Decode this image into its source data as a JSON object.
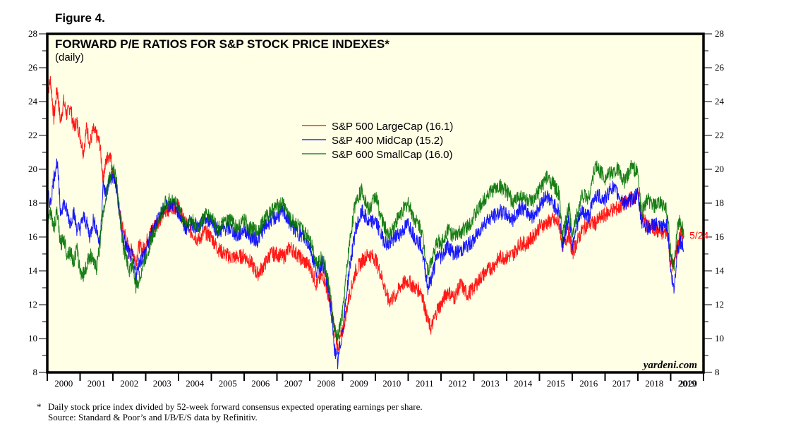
{
  "figure_label": "Figure 4.",
  "chart_data": {
    "type": "line",
    "title": "FORWARD P/E RATIOS FOR S&P STOCK PRICE INDEXES*",
    "subtitle": "(daily)",
    "xlabel": "",
    "ylabel": "",
    "xlim": [
      2000,
      2020
    ],
    "ylim": [
      8,
      28
    ],
    "y_ticks": [
      8,
      10,
      12,
      14,
      16,
      18,
      20,
      22,
      24,
      26,
      28
    ],
    "x_tick_labels": [
      "2000",
      "2001",
      "2002",
      "2003",
      "2004",
      "2005",
      "2006",
      "2007",
      "2008",
      "2009",
      "2010",
      "2011",
      "2012",
      "2013",
      "2014",
      "2015",
      "2016",
      "2017",
      "2018",
      "2019",
      "2020"
    ],
    "grid": false,
    "legend_position": "top-center",
    "annotation": {
      "text": "5/24",
      "x": 2019.4,
      "y": 16.1,
      "color": "#ff0000"
    },
    "watermark": "yardeni.com",
    "series": [
      {
        "name": "S&P 500 LargeCap (16.1)",
        "color": "#ff0000",
        "x": [
          2000.0,
          2000.1,
          2000.2,
          2000.3,
          2000.4,
          2000.5,
          2000.6,
          2000.7,
          2000.8,
          2000.9,
          2001.0,
          2001.1,
          2001.2,
          2001.3,
          2001.4,
          2001.5,
          2001.6,
          2001.7,
          2001.8,
          2001.9,
          2002.0,
          2002.1,
          2002.2,
          2002.3,
          2002.4,
          2002.5,
          2002.6,
          2002.7,
          2002.8,
          2002.9,
          2003.0,
          2003.2,
          2003.4,
          2003.6,
          2003.8,
          2004.0,
          2004.2,
          2004.4,
          2004.6,
          2004.8,
          2005.0,
          2005.2,
          2005.4,
          2005.6,
          2005.8,
          2006.0,
          2006.2,
          2006.4,
          2006.6,
          2006.8,
          2007.0,
          2007.2,
          2007.4,
          2007.6,
          2007.8,
          2008.0,
          2008.2,
          2008.4,
          2008.6,
          2008.75,
          2008.85,
          2009.0,
          2009.2,
          2009.4,
          2009.6,
          2009.8,
          2010.0,
          2010.2,
          2010.4,
          2010.6,
          2010.8,
          2011.0,
          2011.2,
          2011.4,
          2011.6,
          2011.7,
          2011.9,
          2012.0,
          2012.2,
          2012.4,
          2012.6,
          2012.8,
          2013.0,
          2013.2,
          2013.4,
          2013.6,
          2013.8,
          2014.0,
          2014.2,
          2014.4,
          2014.6,
          2014.8,
          2015.0,
          2015.2,
          2015.4,
          2015.6,
          2015.7,
          2015.9,
          2016.0,
          2016.1,
          2016.3,
          2016.5,
          2016.7,
          2016.9,
          2017.0,
          2017.2,
          2017.4,
          2017.6,
          2017.8,
          2018.0,
          2018.1,
          2018.3,
          2018.5,
          2018.7,
          2018.9,
          2019.0,
          2019.1,
          2019.2,
          2019.3,
          2019.4
        ],
        "values": [
          24.5,
          25.3,
          23.0,
          24.8,
          22.8,
          24.0,
          23.2,
          23.8,
          22.5,
          22.8,
          22.0,
          21.0,
          22.5,
          21.5,
          22.3,
          22.0,
          21.5,
          19.5,
          20.5,
          21.0,
          20.0,
          19.0,
          17.5,
          16.5,
          16.0,
          15.0,
          15.3,
          14.5,
          15.5,
          15.2,
          15.6,
          16.5,
          17.0,
          17.5,
          17.8,
          17.8,
          16.8,
          16.3,
          15.8,
          16.3,
          16.0,
          15.3,
          15.0,
          14.8,
          14.8,
          14.9,
          14.5,
          13.8,
          14.3,
          15.0,
          15.0,
          14.8,
          15.4,
          15.0,
          14.6,
          14.3,
          13.2,
          13.8,
          12.3,
          10.6,
          9.5,
          10.4,
          12.5,
          14.0,
          14.6,
          15.0,
          14.7,
          13.6,
          12.2,
          12.5,
          13.2,
          13.4,
          13.0,
          12.8,
          11.0,
          10.6,
          11.8,
          12.0,
          12.8,
          12.4,
          13.2,
          12.6,
          13.0,
          13.6,
          14.0,
          14.3,
          14.8,
          14.8,
          15.0,
          15.6,
          15.6,
          16.0,
          16.6,
          16.8,
          17.0,
          16.8,
          15.5,
          16.2,
          15.0,
          15.5,
          16.4,
          16.8,
          16.8,
          17.2,
          17.3,
          17.6,
          17.7,
          18.0,
          18.3,
          18.5,
          17.4,
          16.6,
          16.5,
          16.2,
          16.3,
          14.5,
          14.3,
          15.5,
          16.2,
          16.1
        ]
      },
      {
        "name": "S&P 400 MidCap (15.2)",
        "color": "#0000ff",
        "x": [
          2000.0,
          2000.1,
          2000.2,
          2000.3,
          2000.4,
          2000.5,
          2000.6,
          2000.7,
          2000.8,
          2000.9,
          2001.0,
          2001.1,
          2001.2,
          2001.3,
          2001.4,
          2001.5,
          2001.6,
          2001.7,
          2001.8,
          2001.9,
          2002.0,
          2002.1,
          2002.2,
          2002.3,
          2002.4,
          2002.5,
          2002.6,
          2002.7,
          2002.8,
          2002.9,
          2003.0,
          2003.2,
          2003.4,
          2003.6,
          2003.8,
          2004.0,
          2004.2,
          2004.4,
          2004.6,
          2004.8,
          2005.0,
          2005.2,
          2005.4,
          2005.6,
          2005.8,
          2006.0,
          2006.2,
          2006.4,
          2006.6,
          2006.8,
          2007.0,
          2007.2,
          2007.4,
          2007.6,
          2007.8,
          2008.0,
          2008.2,
          2008.4,
          2008.6,
          2008.75,
          2008.85,
          2009.0,
          2009.2,
          2009.4,
          2009.6,
          2009.8,
          2010.0,
          2010.2,
          2010.4,
          2010.6,
          2010.8,
          2011.0,
          2011.2,
          2011.4,
          2011.6,
          2011.7,
          2011.9,
          2012.0,
          2012.2,
          2012.4,
          2012.6,
          2012.8,
          2013.0,
          2013.2,
          2013.4,
          2013.6,
          2013.8,
          2014.0,
          2014.2,
          2014.4,
          2014.6,
          2014.8,
          2015.0,
          2015.2,
          2015.4,
          2015.6,
          2015.7,
          2015.9,
          2016.0,
          2016.1,
          2016.3,
          2016.5,
          2016.7,
          2016.9,
          2017.0,
          2017.2,
          2017.4,
          2017.6,
          2017.8,
          2018.0,
          2018.1,
          2018.3,
          2018.5,
          2018.7,
          2018.9,
          2019.0,
          2019.1,
          2019.2,
          2019.3,
          2019.4
        ],
        "values": [
          18.5,
          18.0,
          19.5,
          20.5,
          17.5,
          18.0,
          17.5,
          16.8,
          17.5,
          16.5,
          16.5,
          17.2,
          16.8,
          16.0,
          17.0,
          16.5,
          15.5,
          19.0,
          18.5,
          19.5,
          19.5,
          19.0,
          17.3,
          16.0,
          15.5,
          15.0,
          14.8,
          13.6,
          14.5,
          14.8,
          15.2,
          16.4,
          17.2,
          17.8,
          18.0,
          17.5,
          16.5,
          16.8,
          16.5,
          17.0,
          17.0,
          16.3,
          16.5,
          16.5,
          16.0,
          16.5,
          16.0,
          15.8,
          16.5,
          17.0,
          17.2,
          17.5,
          16.8,
          16.3,
          16.0,
          15.5,
          14.0,
          14.5,
          12.5,
          9.5,
          8.5,
          10.5,
          14.0,
          16.5,
          17.5,
          16.8,
          17.0,
          16.0,
          15.5,
          16.0,
          16.3,
          16.8,
          16.0,
          15.5,
          13.0,
          13.5,
          15.0,
          14.8,
          15.5,
          15.0,
          15.2,
          15.5,
          15.8,
          16.5,
          17.0,
          17.2,
          17.5,
          17.3,
          17.0,
          17.8,
          17.5,
          17.2,
          17.8,
          18.5,
          18.0,
          17.5,
          15.5,
          17.2,
          15.5,
          16.5,
          17.5,
          17.2,
          18.5,
          18.3,
          18.2,
          19.0,
          18.5,
          18.0,
          18.2,
          18.5,
          17.0,
          16.5,
          16.8,
          16.5,
          16.8,
          14.0,
          12.8,
          15.2,
          15.8,
          15.2
        ]
      },
      {
        "name": "S&P 600 SmallCap (16.0)",
        "color": "#007000",
        "x": [
          2000.0,
          2000.1,
          2000.2,
          2000.3,
          2000.4,
          2000.5,
          2000.6,
          2000.7,
          2000.8,
          2000.9,
          2001.0,
          2001.1,
          2001.2,
          2001.3,
          2001.4,
          2001.5,
          2001.6,
          2001.7,
          2001.8,
          2001.9,
          2002.0,
          2002.1,
          2002.2,
          2002.3,
          2002.4,
          2002.5,
          2002.6,
          2002.7,
          2002.8,
          2002.9,
          2003.0,
          2003.2,
          2003.4,
          2003.6,
          2003.8,
          2004.0,
          2004.2,
          2004.4,
          2004.6,
          2004.8,
          2005.0,
          2005.2,
          2005.4,
          2005.6,
          2005.8,
          2006.0,
          2006.2,
          2006.4,
          2006.6,
          2006.8,
          2007.0,
          2007.2,
          2007.4,
          2007.6,
          2007.8,
          2008.0,
          2008.2,
          2008.4,
          2008.6,
          2008.75,
          2008.85,
          2009.0,
          2009.2,
          2009.4,
          2009.6,
          2009.8,
          2010.0,
          2010.2,
          2010.4,
          2010.6,
          2010.8,
          2011.0,
          2011.2,
          2011.4,
          2011.6,
          2011.7,
          2011.9,
          2012.0,
          2012.2,
          2012.4,
          2012.6,
          2012.8,
          2013.0,
          2013.2,
          2013.4,
          2013.6,
          2013.8,
          2014.0,
          2014.2,
          2014.4,
          2014.6,
          2014.8,
          2015.0,
          2015.2,
          2015.4,
          2015.6,
          2015.7,
          2015.9,
          2016.0,
          2016.1,
          2016.3,
          2016.5,
          2016.7,
          2016.9,
          2017.0,
          2017.2,
          2017.4,
          2017.6,
          2017.8,
          2018.0,
          2018.1,
          2018.3,
          2018.5,
          2018.7,
          2018.9,
          2019.0,
          2019.1,
          2019.2,
          2019.3,
          2019.4
        ],
        "values": [
          17.0,
          17.5,
          16.5,
          17.5,
          15.5,
          16.0,
          15.0,
          15.2,
          14.5,
          15.3,
          14.0,
          13.8,
          14.3,
          15.0,
          14.5,
          14.2,
          15.5,
          17.5,
          18.5,
          19.5,
          20.0,
          19.5,
          17.5,
          15.5,
          14.8,
          14.0,
          14.5,
          13.0,
          13.5,
          14.2,
          14.8,
          16.0,
          17.0,
          18.0,
          18.2,
          17.8,
          16.8,
          17.0,
          16.5,
          17.3,
          17.2,
          16.5,
          16.8,
          17.0,
          16.5,
          17.0,
          16.5,
          16.3,
          17.0,
          17.5,
          17.8,
          18.0,
          17.0,
          16.8,
          16.3,
          16.0,
          14.5,
          14.8,
          13.0,
          10.5,
          10.0,
          11.5,
          15.5,
          18.2,
          18.8,
          17.5,
          18.5,
          17.0,
          16.0,
          16.8,
          17.5,
          18.0,
          17.0,
          16.5,
          14.0,
          14.5,
          15.8,
          15.5,
          16.5,
          16.0,
          16.3,
          16.6,
          17.2,
          17.8,
          18.5,
          18.8,
          19.0,
          18.7,
          18.0,
          18.5,
          18.2,
          18.0,
          18.8,
          19.5,
          19.2,
          18.5,
          16.0,
          17.8,
          16.0,
          17.0,
          18.5,
          18.3,
          20.2,
          19.8,
          19.5,
          19.8,
          20.0,
          19.2,
          20.2,
          19.8,
          17.5,
          18.2,
          17.8,
          18.0,
          17.5,
          15.0,
          14.2,
          16.5,
          17.0,
          16.0
        ]
      }
    ]
  },
  "footnotes": [
    {
      "marker": "*",
      "text": "Daily stock price index divided by 52-week forward consensus expected operating earnings per share."
    },
    {
      "marker": "",
      "text": "Source: Standard & Poor’s and I/B/E/S data by Refinitiv."
    }
  ]
}
